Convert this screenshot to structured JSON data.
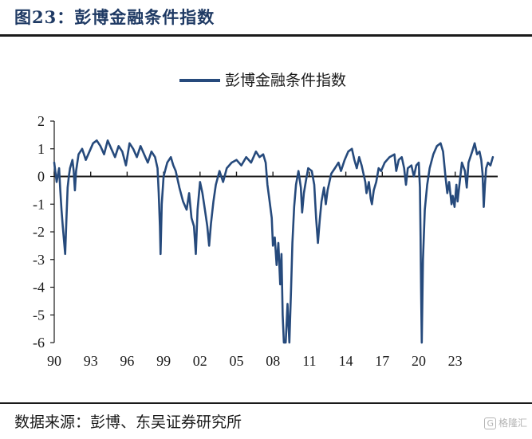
{
  "figure": {
    "title": "图23：彭博金融条件指数",
    "source": "数据来源：彭博、东吴证券研究所",
    "watermark": "格隆汇"
  },
  "chart_data": {
    "type": "line",
    "title": "",
    "xlabel": "",
    "ylabel": "",
    "ylim": [
      -6,
      2
    ],
    "xlim": [
      1990,
      2026.5
    ],
    "yticks": [
      "2",
      "1",
      "0",
      "-1",
      "-2",
      "-3",
      "-4",
      "-5",
      "-6"
    ],
    "yticks_values": [
      2,
      1,
      0,
      -1,
      -2,
      -3,
      -4,
      -5,
      -6
    ],
    "xticks": [
      "90",
      "93",
      "96",
      "99",
      "02",
      "05",
      "08",
      "11",
      "14",
      "17",
      "20",
      "23"
    ],
    "xticks_values": [
      1990,
      1993,
      1996,
      1999,
      2002,
      2005,
      2008,
      2011,
      2014,
      2017,
      2020,
      2023
    ],
    "legend_position": "top-center",
    "grid": false,
    "zero_line": true,
    "line_color": "#264a7c",
    "series": [
      {
        "name": "彭博金融条件指数",
        "points": [
          [
            1990.0,
            0.5
          ],
          [
            1990.2,
            -0.2
          ],
          [
            1990.4,
            0.3
          ],
          [
            1990.5,
            -0.5
          ],
          [
            1990.6,
            -1.2
          ],
          [
            1990.7,
            -1.8
          ],
          [
            1990.8,
            -2.3
          ],
          [
            1990.9,
            -2.8
          ],
          [
            1991.0,
            -1.6
          ],
          [
            1991.1,
            -0.4
          ],
          [
            1991.2,
            0.0
          ],
          [
            1991.3,
            0.3
          ],
          [
            1991.5,
            0.6
          ],
          [
            1991.6,
            0.2
          ],
          [
            1991.7,
            -0.5
          ],
          [
            1991.8,
            0.2
          ],
          [
            1992.0,
            0.8
          ],
          [
            1992.3,
            1.0
          ],
          [
            1992.6,
            0.6
          ],
          [
            1992.9,
            0.9
          ],
          [
            1993.2,
            1.2
          ],
          [
            1993.5,
            1.3
          ],
          [
            1993.8,
            1.1
          ],
          [
            1994.1,
            0.8
          ],
          [
            1994.4,
            1.3
          ],
          [
            1994.7,
            1.0
          ],
          [
            1995.0,
            0.7
          ],
          [
            1995.3,
            1.1
          ],
          [
            1995.6,
            0.9
          ],
          [
            1995.9,
            0.4
          ],
          [
            1996.2,
            1.2
          ],
          [
            1996.5,
            1.0
          ],
          [
            1996.8,
            0.7
          ],
          [
            1997.1,
            1.1
          ],
          [
            1997.4,
            0.8
          ],
          [
            1997.7,
            0.5
          ],
          [
            1998.0,
            0.9
          ],
          [
            1998.3,
            0.7
          ],
          [
            1998.5,
            0.3
          ],
          [
            1998.6,
            -0.6
          ],
          [
            1998.7,
            -1.8
          ],
          [
            1998.75,
            -2.8
          ],
          [
            1998.85,
            -1.0
          ],
          [
            1999.0,
            0.0
          ],
          [
            1999.3,
            0.5
          ],
          [
            1999.6,
            0.7
          ],
          [
            1999.8,
            0.4
          ],
          [
            2000.0,
            0.2
          ],
          [
            2000.3,
            -0.4
          ],
          [
            2000.6,
            -0.9
          ],
          [
            2000.9,
            -1.2
          ],
          [
            2001.1,
            -0.6
          ],
          [
            2001.3,
            -1.5
          ],
          [
            2001.5,
            -1.8
          ],
          [
            2001.65,
            -2.8
          ],
          [
            2001.8,
            -1.2
          ],
          [
            2002.0,
            -0.2
          ],
          [
            2002.2,
            -0.6
          ],
          [
            2002.4,
            -1.2
          ],
          [
            2002.6,
            -1.8
          ],
          [
            2002.75,
            -2.5
          ],
          [
            2002.9,
            -1.7
          ],
          [
            2003.1,
            -0.9
          ],
          [
            2003.3,
            -0.3
          ],
          [
            2003.6,
            0.2
          ],
          [
            2003.9,
            -0.2
          ],
          [
            2004.2,
            0.3
          ],
          [
            2004.6,
            0.5
          ],
          [
            2005.0,
            0.6
          ],
          [
            2005.4,
            0.4
          ],
          [
            2005.8,
            0.7
          ],
          [
            2006.2,
            0.5
          ],
          [
            2006.6,
            0.9
          ],
          [
            2006.9,
            0.7
          ],
          [
            2007.2,
            0.8
          ],
          [
            2007.4,
            0.5
          ],
          [
            2007.55,
            -0.3
          ],
          [
            2007.7,
            -0.8
          ],
          [
            2007.9,
            -1.5
          ],
          [
            2008.0,
            -2.5
          ],
          [
            2008.15,
            -2.2
          ],
          [
            2008.3,
            -3.2
          ],
          [
            2008.45,
            -2.4
          ],
          [
            2008.6,
            -3.9
          ],
          [
            2008.7,
            -2.8
          ],
          [
            2008.8,
            -5.0
          ],
          [
            2008.9,
            -6.0
          ],
          [
            2009.05,
            -6.0
          ],
          [
            2009.2,
            -4.6
          ],
          [
            2009.35,
            -6.0
          ],
          [
            2009.5,
            -4.0
          ],
          [
            2009.6,
            -2.4
          ],
          [
            2009.75,
            -1.1
          ],
          [
            2009.9,
            -0.3
          ],
          [
            2010.1,
            0.2
          ],
          [
            2010.3,
            -0.4
          ],
          [
            2010.4,
            -1.3
          ],
          [
            2010.55,
            -0.6
          ],
          [
            2010.7,
            -0.2
          ],
          [
            2010.9,
            0.3
          ],
          [
            2011.2,
            0.2
          ],
          [
            2011.4,
            -0.3
          ],
          [
            2011.55,
            -1.5
          ],
          [
            2011.7,
            -2.4
          ],
          [
            2011.85,
            -1.6
          ],
          [
            2012.0,
            -0.9
          ],
          [
            2012.2,
            -0.4
          ],
          [
            2012.35,
            -1.0
          ],
          [
            2012.5,
            -0.5
          ],
          [
            2012.8,
            0.1
          ],
          [
            2013.1,
            0.3
          ],
          [
            2013.4,
            0.5
          ],
          [
            2013.6,
            0.2
          ],
          [
            2013.9,
            0.6
          ],
          [
            2014.2,
            0.9
          ],
          [
            2014.5,
            1.0
          ],
          [
            2014.7,
            0.6
          ],
          [
            2014.9,
            0.3
          ],
          [
            2015.1,
            0.7
          ],
          [
            2015.3,
            0.4
          ],
          [
            2015.6,
            -0.2
          ],
          [
            2015.7,
            -0.6
          ],
          [
            2015.9,
            -0.2
          ],
          [
            2016.05,
            -0.8
          ],
          [
            2016.15,
            -1.0
          ],
          [
            2016.3,
            -0.5
          ],
          [
            2016.5,
            -0.2
          ],
          [
            2016.7,
            0.3
          ],
          [
            2016.9,
            0.2
          ],
          [
            2017.2,
            0.5
          ],
          [
            2017.6,
            0.7
          ],
          [
            2018.0,
            0.8
          ],
          [
            2018.15,
            0.2
          ],
          [
            2018.35,
            0.6
          ],
          [
            2018.6,
            0.7
          ],
          [
            2018.8,
            0.3
          ],
          [
            2018.95,
            -0.3
          ],
          [
            2019.1,
            0.3
          ],
          [
            2019.4,
            0.4
          ],
          [
            2019.6,
            0.0
          ],
          [
            2019.8,
            0.4
          ],
          [
            2020.0,
            0.5
          ],
          [
            2020.1,
            -0.4
          ],
          [
            2020.15,
            -2.2
          ],
          [
            2020.2,
            -4.2
          ],
          [
            2020.25,
            -6.0
          ],
          [
            2020.35,
            -3.0
          ],
          [
            2020.5,
            -1.2
          ],
          [
            2020.7,
            -0.3
          ],
          [
            2020.9,
            0.3
          ],
          [
            2021.2,
            0.8
          ],
          [
            2021.5,
            1.1
          ],
          [
            2021.8,
            1.2
          ],
          [
            2022.0,
            0.9
          ],
          [
            2022.2,
            0.0
          ],
          [
            2022.35,
            -0.6
          ],
          [
            2022.5,
            -0.2
          ],
          [
            2022.7,
            -1.0
          ],
          [
            2022.8,
            -0.7
          ],
          [
            2022.95,
            -1.1
          ],
          [
            2023.1,
            -0.3
          ],
          [
            2023.2,
            -0.9
          ],
          [
            2023.35,
            -0.3
          ],
          [
            2023.55,
            0.5
          ],
          [
            2023.8,
            0.2
          ],
          [
            2023.95,
            -0.4
          ],
          [
            2024.1,
            0.5
          ],
          [
            2024.4,
            0.9
          ],
          [
            2024.6,
            1.2
          ],
          [
            2024.8,
            0.8
          ],
          [
            2025.0,
            0.9
          ],
          [
            2025.15,
            0.6
          ],
          [
            2025.25,
            0.1
          ],
          [
            2025.35,
            -1.1
          ],
          [
            2025.45,
            -0.3
          ],
          [
            2025.55,
            0.3
          ],
          [
            2025.7,
            0.5
          ],
          [
            2025.9,
            0.4
          ],
          [
            2026.1,
            0.7
          ]
        ]
      }
    ]
  }
}
